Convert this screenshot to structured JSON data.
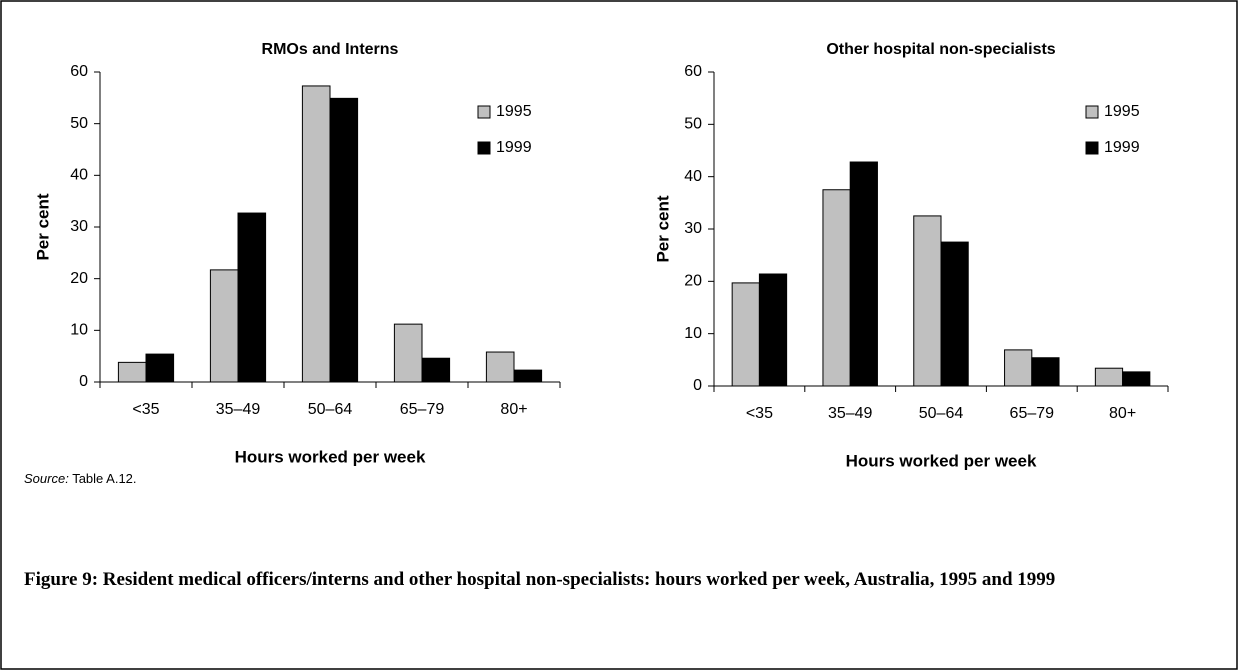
{
  "chart_data": [
    {
      "type": "bar",
      "title": "RMOs and Interns",
      "x_label": "Hours worked per week",
      "y_label": "Per cent",
      "categories": [
        "<35",
        "35–49",
        "50–64",
        "65–79",
        "80+"
      ],
      "series": [
        {
          "name": "1995",
          "color": "#c0c0c0",
          "values": [
            3.8,
            21.7,
            57.3,
            11.2,
            5.8
          ]
        },
        {
          "name": "1999",
          "color": "#000000",
          "values": [
            5.4,
            32.7,
            54.9,
            4.6,
            2.3
          ]
        }
      ],
      "ylim": [
        0,
        60
      ],
      "yticks": [
        0,
        10,
        20,
        30,
        40,
        50,
        60
      ],
      "grid": false,
      "legend": "upper right"
    },
    {
      "type": "bar",
      "title": "Other hospital non-specialists",
      "x_label": "Hours worked per week",
      "y_label": "Per cent",
      "categories": [
        "<35",
        "35–49",
        "50–64",
        "65–79",
        "80+"
      ],
      "series": [
        {
          "name": "1995",
          "color": "#c0c0c0",
          "values": [
            19.7,
            37.5,
            32.5,
            6.9,
            3.4
          ]
        },
        {
          "name": "1999",
          "color": "#000000",
          "values": [
            21.4,
            42.8,
            27.5,
            5.4,
            2.7
          ]
        }
      ],
      "ylim": [
        0,
        60
      ],
      "yticks": [
        0,
        10,
        20,
        30,
        40,
        50,
        60
      ],
      "grid": false,
      "legend": "upper right"
    }
  ],
  "source": {
    "label": "Source:",
    "text": " Table A.12."
  },
  "caption": "Figure 9: Resident medical officers/interns and other hospital non-specialists: hours worked per week, Australia, 1995 and 1999"
}
